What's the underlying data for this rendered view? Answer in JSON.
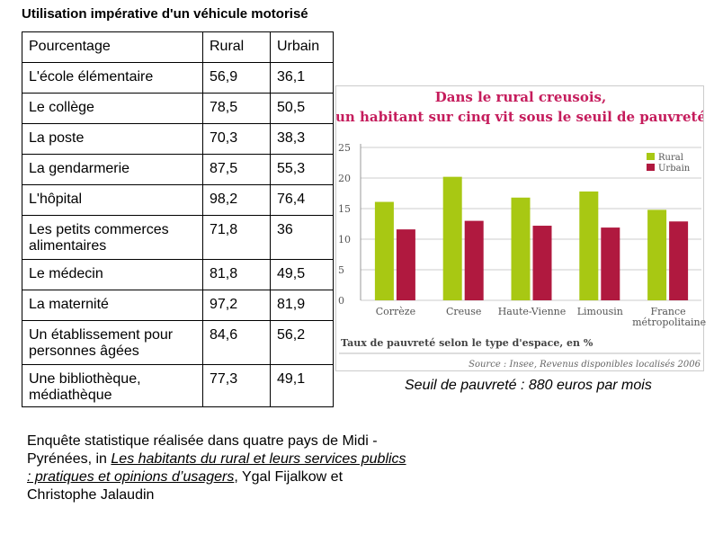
{
  "title": "Utilisation impérative d'un véhicule motorisé",
  "table": {
    "header": [
      "Pourcentage",
      "Rural",
      "Urbain"
    ],
    "rows": [
      [
        "L'école élémentaire",
        "56,9",
        "36,1"
      ],
      [
        "Le collège",
        "78,5",
        "50,5"
      ],
      [
        "La poste",
        "70,3",
        "38,3"
      ],
      [
        "La gendarmerie",
        "87,5",
        "55,3"
      ],
      [
        "L'hôpital",
        "98,2",
        "76,4"
      ],
      [
        "Les petits commerces alimentaires",
        "71,8",
        "36"
      ],
      [
        "Le médecin",
        "81,8",
        "49,5"
      ],
      [
        "La maternité",
        "97,2",
        "81,9"
      ],
      [
        "Un établissement pour personnes âgées",
        "84,6",
        "56,2"
      ],
      [
        "Une bibliothèque, médiathèque",
        "77,3",
        "49,1"
      ]
    ]
  },
  "chart_data": {
    "type": "bar",
    "title": [
      "Dans le rural creusois,",
      "un habitant sur cinq vit sous le seuil de pauvreté"
    ],
    "x_label": "Taux de pauvreté selon le type d'espace, en %",
    "source": "Source : Insee, Revenus disponibles localisés 2006",
    "categories": [
      "Corrèze",
      "Creuse",
      "Haute-Vienne",
      "Limousin",
      "France métropolitaine"
    ],
    "series": [
      {
        "name": "Rural",
        "color": "#a8c813",
        "values": [
          16.1,
          20.2,
          16.8,
          17.8,
          14.8
        ]
      },
      {
        "name": "Urbain",
        "color": "#b0193f",
        "values": [
          11.6,
          13.0,
          12.2,
          11.9,
          12.9
        ]
      }
    ],
    "ylim": [
      0,
      25
    ],
    "yticks": [
      0,
      5,
      10,
      15,
      20,
      25
    ],
    "grid": true,
    "legend": "top-right"
  },
  "caption": "Seuil de pauvreté : 880 euros par mois",
  "reference": {
    "before": "Enquête statistique réalisée dans quatre pays de Midi -Pyrénées, in ",
    "book": "Les habitants du rural et leurs services publics : pratiques et opinions d’usagers",
    "after": ",  Ygal Fijalkow et Christophe Jalaudin"
  }
}
